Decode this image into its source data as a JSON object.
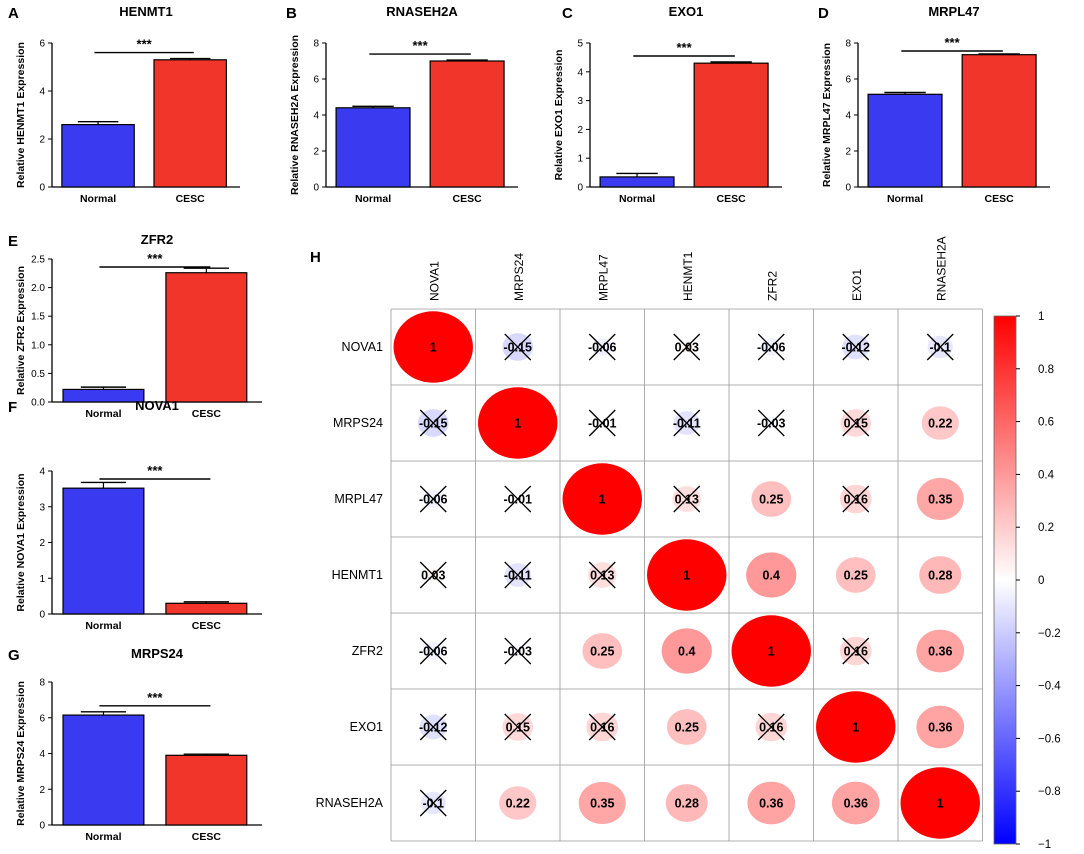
{
  "colors": {
    "normal": "#3a3af0",
    "cesc": "#f2352a",
    "axis": "#000000",
    "grid": "#999999"
  },
  "chart_data": [
    {
      "panel": "A",
      "type": "bar",
      "title": "HENMT1",
      "ylabel": "Relative HENMT1 Expression",
      "categories": [
        "Normal",
        "CESC"
      ],
      "values": [
        2.6,
        5.3
      ],
      "errors": [
        0.12,
        0.05
      ],
      "ylim": [
        0,
        6
      ],
      "yticks": [
        "0",
        "2",
        "4",
        "6"
      ],
      "tickValues": [
        0,
        2,
        4,
        6
      ],
      "significance": "***"
    },
    {
      "panel": "B",
      "type": "bar",
      "title": "RNASEH2A",
      "ylabel": "Relative RNASEH2A Expression",
      "categories": [
        "Normal",
        "CESC"
      ],
      "values": [
        4.4,
        7.0
      ],
      "errors": [
        0.08,
        0.05
      ],
      "ylim": [
        0,
        8
      ],
      "yticks": [
        "0",
        "2",
        "4",
        "6",
        "8"
      ],
      "tickValues": [
        0,
        2,
        4,
        6,
        8
      ],
      "significance": "***"
    },
    {
      "panel": "C",
      "type": "bar",
      "title": "EXO1",
      "ylabel": "Relative EXO1 Expression",
      "categories": [
        "Normal",
        "CESC"
      ],
      "values": [
        0.35,
        4.3
      ],
      "errors": [
        0.12,
        0.04
      ],
      "ylim": [
        0,
        5
      ],
      "yticks": [
        "0",
        "1",
        "2",
        "3",
        "4",
        "5"
      ],
      "tickValues": [
        0,
        1,
        2,
        3,
        4,
        5
      ],
      "significance": "***"
    },
    {
      "panel": "D",
      "type": "bar",
      "title": "MRPL47",
      "ylabel": "Relative MRPL47 Expression",
      "categories": [
        "Normal",
        "CESC"
      ],
      "values": [
        5.15,
        7.35
      ],
      "errors": [
        0.1,
        0.04
      ],
      "ylim": [
        0,
        8
      ],
      "yticks": [
        "0",
        "2",
        "4",
        "6",
        "8"
      ],
      "tickValues": [
        0,
        2,
        4,
        6,
        8
      ],
      "significance": "***"
    },
    {
      "panel": "E",
      "type": "bar",
      "title": "ZFR2",
      "ylabel": "Relative ZFR2 Expression",
      "categories": [
        "Normal",
        "CESC"
      ],
      "values": [
        0.22,
        2.26
      ],
      "errors": [
        0.04,
        0.08
      ],
      "ylim": [
        0,
        2.5
      ],
      "yticks": [
        "0.0",
        "0.5",
        "1.0",
        "1.5",
        "2.0",
        "2.5"
      ],
      "tickValues": [
        0,
        0.5,
        1,
        1.5,
        2,
        2.5
      ],
      "significance": "***"
    },
    {
      "panel": "F",
      "type": "bar",
      "title": "NOVA1",
      "ylabel": "Relative NOVA1 Expression",
      "categories": [
        "Normal",
        "CESC"
      ],
      "values": [
        3.52,
        0.3
      ],
      "errors": [
        0.16,
        0.04
      ],
      "ylim": [
        0,
        4
      ],
      "yticks": [
        "0",
        "1",
        "2",
        "3",
        "4"
      ],
      "tickValues": [
        0,
        1,
        2,
        3,
        4
      ],
      "significance": "***"
    },
    {
      "panel": "G",
      "type": "bar",
      "title": "MRPS24",
      "ylabel": "Relative MRPS24 Expression",
      "categories": [
        "Normal",
        "CESC"
      ],
      "values": [
        6.15,
        3.9
      ],
      "errors": [
        0.18,
        0.06
      ],
      "ylim": [
        0,
        8
      ],
      "yticks": [
        "0",
        "2",
        "4",
        "6",
        "8"
      ],
      "tickValues": [
        0,
        2,
        4,
        6,
        8
      ],
      "significance": "***"
    },
    {
      "panel": "H",
      "type": "heatmap",
      "labels": [
        "NOVA1",
        "MRPS24",
        "MRPL47",
        "HENMT1",
        "ZFR2",
        "EXO1",
        "RNASEH2A"
      ],
      "matrix": [
        [
          1,
          -0.15,
          -0.06,
          0.03,
          -0.06,
          -0.12,
          -0.1
        ],
        [
          -0.15,
          1,
          -0.01,
          -0.11,
          -0.03,
          0.15,
          0.22
        ],
        [
          -0.06,
          -0.01,
          1,
          0.13,
          0.25,
          0.16,
          0.35
        ],
        [
          0.03,
          -0.11,
          0.13,
          1,
          0.4,
          0.25,
          0.28
        ],
        [
          -0.06,
          -0.03,
          0.25,
          0.4,
          1,
          0.16,
          0.36
        ],
        [
          -0.12,
          0.15,
          0.16,
          0.25,
          0.16,
          1,
          0.36
        ],
        [
          -0.1,
          0.22,
          0.35,
          0.28,
          0.36,
          0.36,
          1
        ]
      ],
      "cellText": [
        [
          "1",
          "-0.15",
          "-0.06",
          "0.03",
          "-0.06",
          "-0.12",
          "-0.1"
        ],
        [
          "-0.15",
          "1",
          "-0.01",
          "-0.11",
          "-0.03",
          "0.15",
          "0.22"
        ],
        [
          "-0.06",
          "-0.01",
          "1",
          "0.13",
          "0.25",
          "0.16",
          "0.35"
        ],
        [
          "0.03",
          "-0.11",
          "0.13",
          "1",
          "0.4",
          "0.25",
          "0.28"
        ],
        [
          "-0.06",
          "-0.03",
          "0.25",
          "0.4",
          "1",
          "0.16",
          "0.36"
        ],
        [
          "-0.12",
          "0.15",
          "0.16",
          "0.25",
          "0.16",
          "1",
          "0.36"
        ],
        [
          "-0.1",
          "0.22",
          "0.35",
          "0.28",
          "0.36",
          "0.36",
          "1"
        ]
      ],
      "crossed": [
        [
          false,
          true,
          true,
          true,
          true,
          true,
          true
        ],
        [
          true,
          false,
          true,
          true,
          true,
          true,
          false
        ],
        [
          true,
          true,
          false,
          true,
          false,
          true,
          false
        ],
        [
          true,
          true,
          true,
          false,
          false,
          false,
          false
        ],
        [
          true,
          true,
          false,
          false,
          false,
          true,
          false
        ],
        [
          true,
          true,
          true,
          false,
          true,
          false,
          false
        ],
        [
          true,
          false,
          false,
          false,
          false,
          false,
          false
        ]
      ],
      "colorbar": {
        "range": [
          -1,
          1
        ],
        "ticks": [
          "1",
          "0.8",
          "0.6",
          "0.4",
          "0.2",
          "0",
          "−0.2",
          "−0.4",
          "−0.6",
          "−0.8",
          "−1"
        ],
        "tickValues": [
          1,
          0.8,
          0.6,
          0.4,
          0.2,
          0,
          -0.2,
          -0.4,
          -0.6,
          -0.8,
          -1
        ]
      }
    }
  ]
}
